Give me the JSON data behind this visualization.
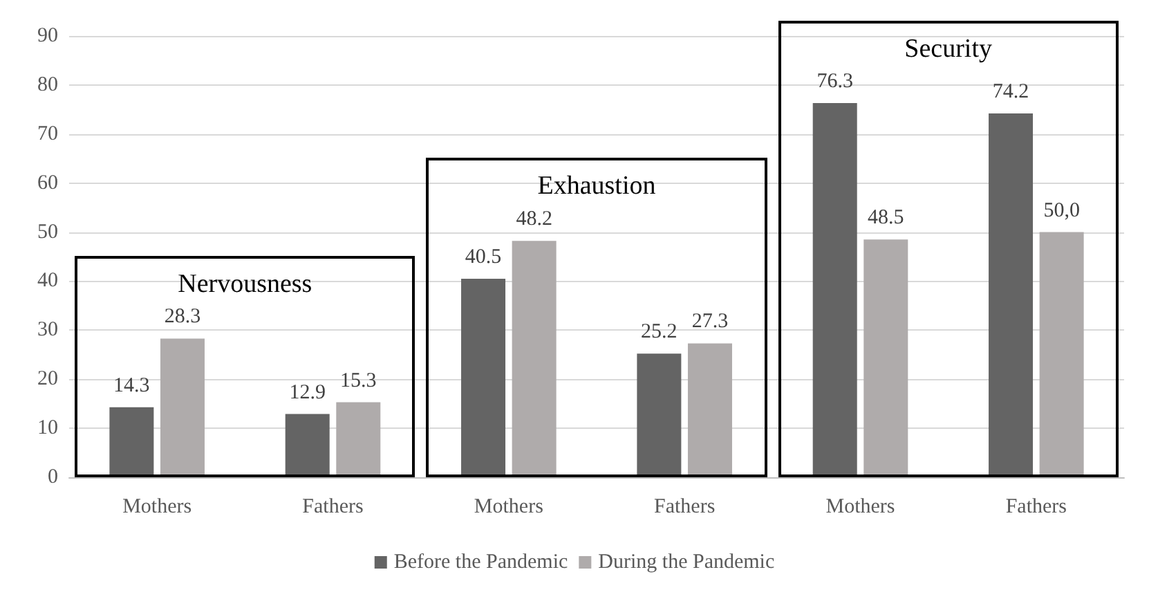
{
  "chart_data": {
    "type": "bar",
    "categories": [
      "Mothers",
      "Fathers",
      "Mothers",
      "Fathers",
      "Mothers",
      "Fathers"
    ],
    "series": [
      {
        "name": "Before the Pandemic",
        "color": "#646464",
        "values": [
          14.3,
          12.9,
          40.5,
          25.2,
          76.3,
          74.2
        ],
        "value_labels": [
          "14.3",
          "12.9",
          "40.5",
          "25.2",
          "76.3",
          "74.2"
        ]
      },
      {
        "name": "During the Pandemic",
        "color": "#afabab",
        "values": [
          28.3,
          15.3,
          48.2,
          27.3,
          48.5,
          50.0
        ],
        "value_labels": [
          "28.3",
          "15.3",
          "48.2",
          "27.3",
          "48.5",
          "50,0"
        ]
      }
    ],
    "ylim": [
      0,
      90
    ],
    "yticks": [
      0,
      10,
      20,
      30,
      40,
      50,
      60,
      70,
      80,
      90
    ],
    "grid": "y",
    "legend": "bottom",
    "annotations": [
      "Nervousness",
      "Exhaustion",
      "Security"
    ]
  }
}
